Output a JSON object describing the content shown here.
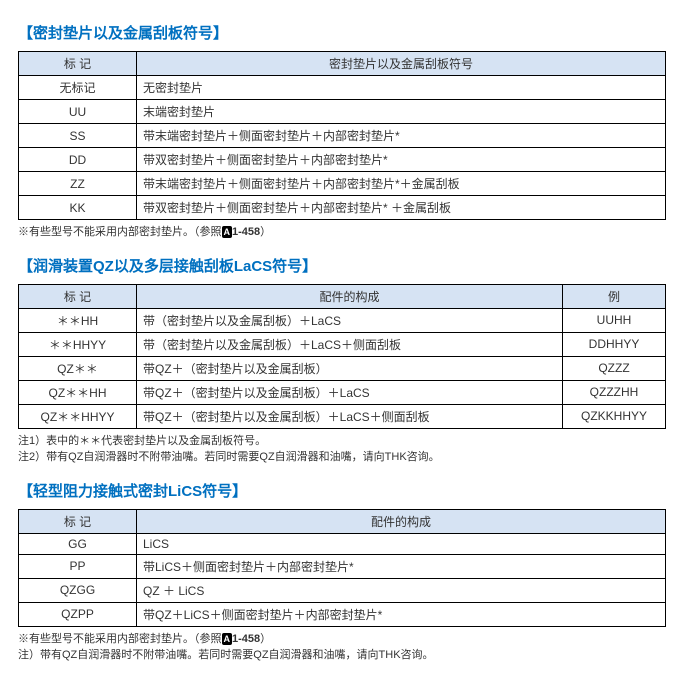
{
  "section1": {
    "title": "【密封垫片以及金属刮板符号】",
    "headers": {
      "mark": "标 记",
      "desc": "密封垫片以及金属刮板符号"
    },
    "rows": [
      {
        "mark": "无标记",
        "desc": "无密封垫片"
      },
      {
        "mark": "UU",
        "desc": "末端密封垫片"
      },
      {
        "mark": "SS",
        "desc": "带末端密封垫片＋侧面密封垫片＋内部密封垫片*"
      },
      {
        "mark": "DD",
        "desc": "带双密封垫片＋侧面密封垫片＋内部密封垫片*"
      },
      {
        "mark": "ZZ",
        "desc": "带末端密封垫片＋侧面密封垫片＋内部密封垫片*＋金属刮板"
      },
      {
        "mark": "KK",
        "desc": "带双密封垫片＋侧面密封垫片＋内部密封垫片* ＋金属刮板"
      }
    ],
    "note_prefix": "※有些型号不能采用内部密封垫片。（参照",
    "note_ref_icon": "A",
    "note_ref_num": "1-458",
    "note_suffix": "）"
  },
  "section2": {
    "title": "【润滑装置QZ以及多层接触刮板LaCS符号】",
    "headers": {
      "mark": "标 记",
      "desc": "配件的构成",
      "example": "例"
    },
    "rows": [
      {
        "mark": "＊＊HH",
        "desc": "带（密封垫片以及金属刮板）＋LaCS",
        "example": "UUHH"
      },
      {
        "mark": "＊＊HHYY",
        "desc": "带（密封垫片以及金属刮板）＋LaCS＋侧面刮板",
        "example": "DDHHYY"
      },
      {
        "mark": "QZ＊＊",
        "desc": "带QZ＋（密封垫片以及金属刮板）",
        "example": "QZZZ"
      },
      {
        "mark": "QZ＊＊HH",
        "desc": "带QZ＋（密封垫片以及金属刮板）＋LaCS",
        "example": "QZZZHH"
      },
      {
        "mark": "QZ＊＊HHYY",
        "desc": "带QZ＋（密封垫片以及金属刮板）＋LaCS＋侧面刮板",
        "example": "QZKKHHYY"
      }
    ],
    "note1": "注1）表中的＊＊代表密封垫片以及金属刮板符号。",
    "note2": "注2）带有QZ自润滑器时不附带油嘴。若同时需要QZ自润滑器和油嘴，请向THK咨询。"
  },
  "section3": {
    "title": "【轻型阻力接触式密封LiCS符号】",
    "headers": {
      "mark": "标 记",
      "desc": "配件的构成"
    },
    "rows": [
      {
        "mark": "GG",
        "desc": "LiCS"
      },
      {
        "mark": "PP",
        "desc": "带LiCS＋侧面密封垫片＋内部密封垫片*"
      },
      {
        "mark": "QZGG",
        "desc": "QZ ＋ LiCS"
      },
      {
        "mark": "QZPP",
        "desc": "带QZ＋LiCS＋侧面密封垫片＋内部密封垫片*"
      }
    ],
    "note1_prefix": "※有些型号不能采用内部密封垫片。（参照",
    "note1_ref_icon": "A",
    "note1_ref_num": "1-458",
    "note1_suffix": "）",
    "note2": "注）带有QZ自润滑器时不附带油嘴。若同时需要QZ自润滑器和油嘴，请向THK咨询。"
  }
}
